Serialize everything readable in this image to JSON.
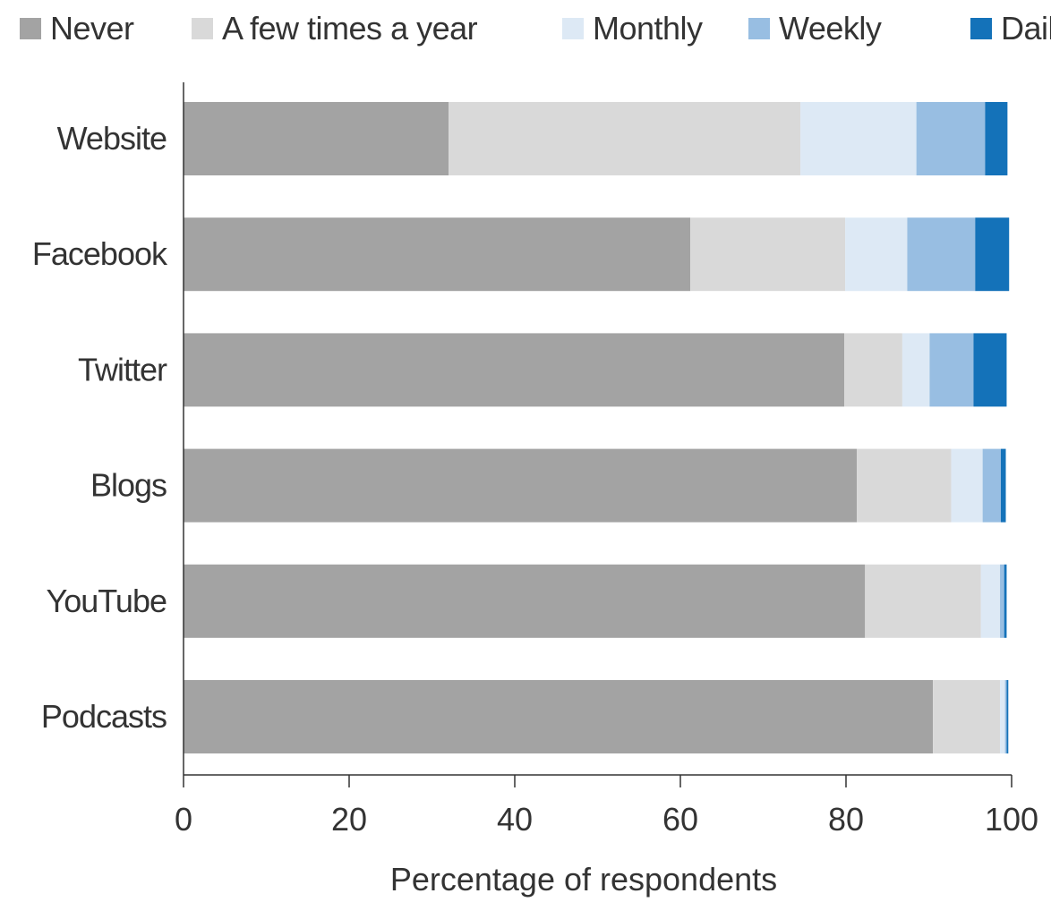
{
  "chart_data": {
    "type": "bar",
    "orientation": "horizontal",
    "stacked": true,
    "categories": [
      "Website",
      "Facebook",
      "Twitter",
      "Blogs",
      "YouTube",
      "Podcasts"
    ],
    "series": [
      {
        "name": "Never",
        "color": "#a3a3a3",
        "values": [
          32,
          61.2,
          79.8,
          81.3,
          82.3,
          90.5
        ]
      },
      {
        "name": "A few times a year",
        "color": "#d9d9d9",
        "values": [
          42.5,
          18.7,
          7,
          11.4,
          14,
          8.1
        ]
      },
      {
        "name": "Monthly",
        "color": "#dde9f5",
        "values": [
          14,
          7.5,
          3.3,
          3.8,
          2.3,
          0.6
        ]
      },
      {
        "name": "Weekly",
        "color": "#98bee2",
        "values": [
          8.3,
          8.2,
          5.3,
          2.2,
          0.5,
          0.2
        ]
      },
      {
        "name": "Daily",
        "color": "#1472b9",
        "values": [
          2.7,
          4.1,
          4,
          0.6,
          0.3,
          0.2
        ]
      }
    ],
    "xlabel": "Percentage of respondents",
    "ylabel": "",
    "xlim": [
      0,
      100
    ],
    "xticks": [
      0,
      20,
      40,
      60,
      80,
      100
    ],
    "grid": false,
    "legend_position": "top"
  }
}
